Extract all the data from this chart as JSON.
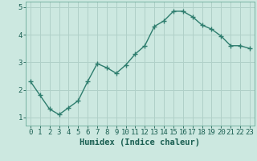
{
  "x": [
    0,
    1,
    2,
    3,
    4,
    5,
    6,
    7,
    8,
    9,
    10,
    11,
    12,
    13,
    14,
    15,
    16,
    17,
    18,
    19,
    20,
    21,
    22,
    23
  ],
  "y": [
    2.3,
    1.8,
    1.3,
    1.1,
    1.35,
    1.6,
    2.3,
    2.95,
    2.8,
    2.6,
    2.9,
    3.3,
    3.6,
    4.3,
    4.5,
    4.85,
    4.85,
    4.65,
    4.35,
    4.2,
    3.95,
    3.6,
    3.6,
    3.5
  ],
  "line_color": "#2e7d6e",
  "marker": "+",
  "marker_size": 4,
  "marker_lw": 1.0,
  "line_width": 1.0,
  "bg_color": "#cce8e0",
  "grid_color": "#b0d0c8",
  "xlabel": "Humidex (Indice chaleur)",
  "ylim": [
    0.7,
    5.2
  ],
  "xlim": [
    -0.5,
    23.5
  ],
  "yticks": [
    1,
    2,
    3,
    4,
    5
  ],
  "xticks": [
    0,
    1,
    2,
    3,
    4,
    5,
    6,
    7,
    8,
    9,
    10,
    11,
    12,
    13,
    14,
    15,
    16,
    17,
    18,
    19,
    20,
    21,
    22,
    23
  ],
  "tick_fontsize": 6.5,
  "xlabel_fontsize": 7.5,
  "text_color": "#1a5f52",
  "spine_color": "#6aaa99"
}
